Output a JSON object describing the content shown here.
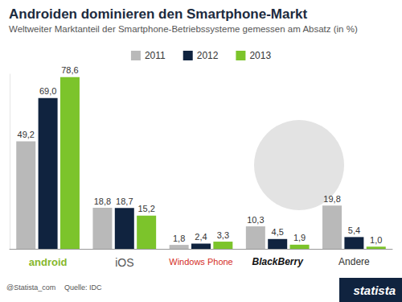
{
  "chart_data": {
    "type": "bar",
    "title": "Androiden dominieren den Smartphone-Markt",
    "subtitle": "Weltweiter Marktanteil der Smartphone-Betriebssysteme gemessen am Absatz (in %)",
    "categories": [
      "android",
      "iOS",
      "Windows Phone",
      "BlackBerry",
      "Andere"
    ],
    "series": [
      {
        "name": "2011",
        "color": "#b9b9b9",
        "values": [
          49.2,
          18.8,
          1.8,
          10.3,
          19.8
        ],
        "value_labels": [
          "49,2",
          "18,8",
          "1,8",
          "10,3",
          "19,8"
        ]
      },
      {
        "name": "2012",
        "color": "#10233f",
        "values": [
          69.0,
          18.7,
          2.4,
          4.5,
          5.4
        ],
        "value_labels": [
          "69,0",
          "18,7",
          "2,4",
          "4,5",
          "5,4"
        ]
      },
      {
        "name": "2013",
        "color": "#7cc42b",
        "values": [
          78.6,
          15.2,
          3.3,
          1.9,
          1.0
        ],
        "value_labels": [
          "78,6",
          "15,2",
          "3,3",
          "1,9",
          "1,0"
        ]
      }
    ],
    "ylim": [
      0,
      80
    ],
    "grid": false,
    "legend": "top",
    "data_labels": true,
    "tick_labels": "x",
    "annotations": [
      "@Statista_com",
      "Quelle: IDC",
      "statista"
    ]
  }
}
